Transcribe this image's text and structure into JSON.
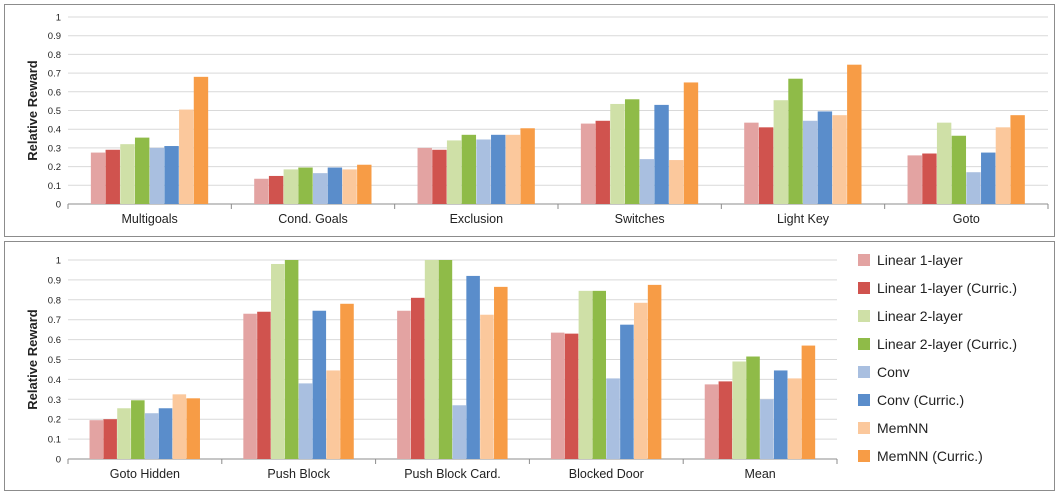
{
  "chart_data": [
    {
      "type": "bar",
      "ylabel": "Relative Reward",
      "ylim": [
        0,
        1
      ],
      "yticks": [
        "0",
        "0.1",
        "0.2",
        "0.3",
        "0.4",
        "0.5",
        "0.6",
        "0.7",
        "0.8",
        "0.9",
        "1"
      ],
      "grid": true,
      "categories": [
        "Multigoals",
        "Cond. Goals",
        "Exclusion",
        "Switches",
        "Light Key",
        "Goto"
      ],
      "series": [
        {
          "name": "Linear 1-layer",
          "values": [
            0.275,
            0.135,
            0.3,
            0.43,
            0.435,
            0.26
          ]
        },
        {
          "name": "Linear 1-layer (Curric.)",
          "values": [
            0.29,
            0.15,
            0.29,
            0.445,
            0.41,
            0.27
          ]
        },
        {
          "name": "Linear 2-layer",
          "values": [
            0.32,
            0.185,
            0.34,
            0.535,
            0.555,
            0.435
          ]
        },
        {
          "name": "Linear 2-layer (Curric.)",
          "values": [
            0.355,
            0.195,
            0.37,
            0.56,
            0.67,
            0.365
          ]
        },
        {
          "name": "Conv",
          "values": [
            0.3,
            0.165,
            0.345,
            0.24,
            0.445,
            0.17
          ]
        },
        {
          "name": "Conv (Curric.)",
          "values": [
            0.31,
            0.195,
            0.37,
            0.53,
            0.495,
            0.275
          ]
        },
        {
          "name": "MemNN",
          "values": [
            0.505,
            0.185,
            0.37,
            0.235,
            0.475,
            0.41
          ]
        },
        {
          "name": "MemNN (Curric.)",
          "values": [
            0.68,
            0.21,
            0.405,
            0.65,
            0.745,
            0.475
          ]
        }
      ]
    },
    {
      "type": "bar",
      "ylabel": "Relative Reward",
      "ylim": [
        0,
        1
      ],
      "yticks": [
        "0",
        "0.1",
        "0.2",
        "0.3",
        "0.4",
        "0.5",
        "0.6",
        "0.7",
        "0.8",
        "0.9",
        "1"
      ],
      "grid": true,
      "legend_position": "right",
      "categories": [
        "Goto Hidden",
        "Push Block",
        "Push Block Card.",
        "Blocked Door",
        "Mean"
      ],
      "series": [
        {
          "name": "Linear 1-layer",
          "values": [
            0.195,
            0.73,
            0.745,
            0.635,
            0.375
          ]
        },
        {
          "name": "Linear 1-layer (Curric.)",
          "values": [
            0.2,
            0.74,
            0.81,
            0.63,
            0.39
          ]
        },
        {
          "name": "Linear 2-layer",
          "values": [
            0.255,
            0.98,
            1.0,
            0.845,
            0.49
          ]
        },
        {
          "name": "Linear 2-layer (Curric.)",
          "values": [
            0.295,
            1.0,
            1.0,
            0.845,
            0.515
          ]
        },
        {
          "name": "Conv",
          "values": [
            0.23,
            0.38,
            0.27,
            0.405,
            0.3
          ]
        },
        {
          "name": "Conv (Curric.)",
          "values": [
            0.255,
            0.745,
            0.92,
            0.675,
            0.445
          ]
        },
        {
          "name": "MemNN",
          "values": [
            0.325,
            0.445,
            0.725,
            0.785,
            0.405
          ]
        },
        {
          "name": "MemNN (Curric.)",
          "values": [
            0.305,
            0.78,
            0.865,
            0.875,
            0.57
          ]
        }
      ]
    }
  ],
  "colors": [
    "#e3a3a2",
    "#d0534e",
    "#cfe0a7",
    "#8fbb48",
    "#a9bfe0",
    "#5a8dcb",
    "#fbc89c",
    "#f79c46"
  ]
}
